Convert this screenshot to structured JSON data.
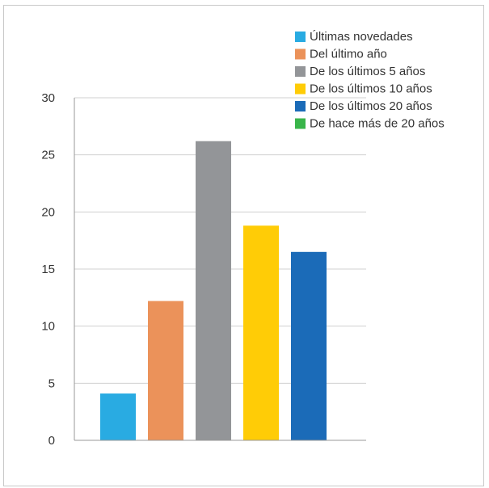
{
  "chart_data": {
    "type": "bar",
    "categories": [
      "Últimas novedades",
      "Del último año",
      "De los últimos 5 años",
      "De los últimos 10 años",
      "De los últimos 20 años",
      "De hace más de 20 años"
    ],
    "values": [
      4.1,
      12.2,
      26.2,
      18.8,
      16.5,
      0
    ],
    "colors": [
      "#29abe2",
      "#eb925a",
      "#939598",
      "#ffcc06",
      "#1b6bb8",
      "#39b54a"
    ],
    "title": "",
    "xlabel": "",
    "ylabel": "",
    "ylim": [
      0,
      30
    ],
    "yticks": [
      "0",
      "5",
      "10",
      "15",
      "20",
      "25",
      "30"
    ],
    "grid": true,
    "legend_position": "top-right"
  }
}
